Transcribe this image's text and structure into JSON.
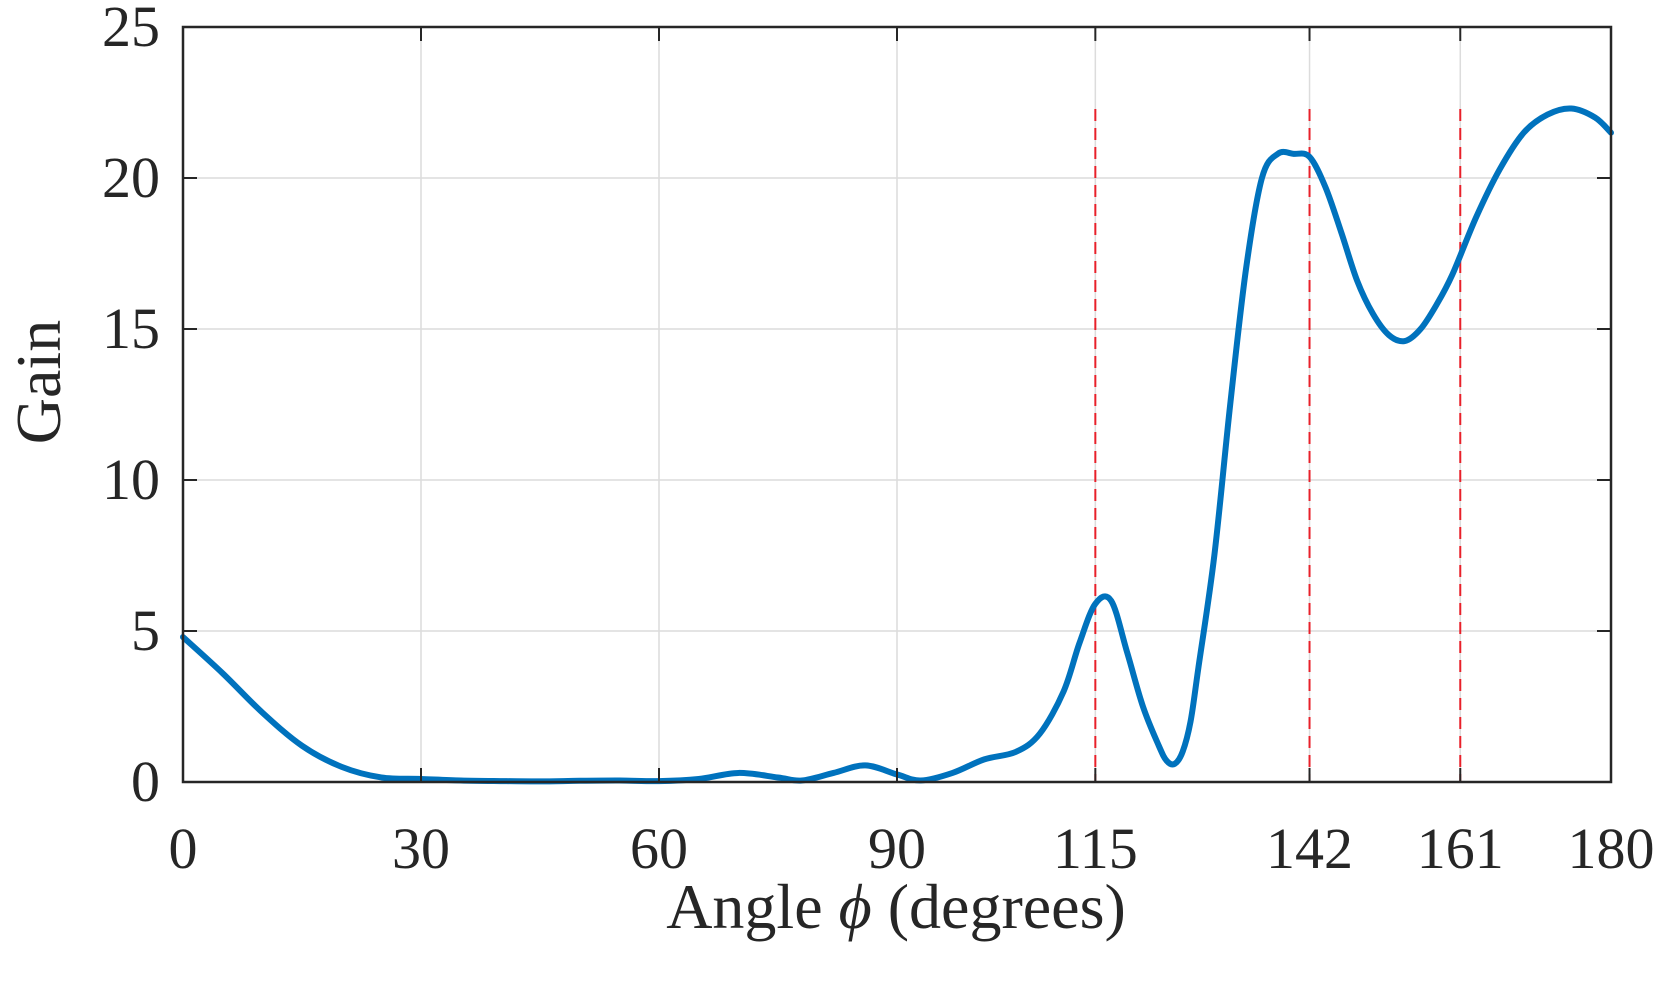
{
  "chart_data": {
    "type": "line",
    "title": "",
    "xlabel": "Angle",
    "xlabel_symbol": "ϕ",
    "xlabel_unit": "(degrees)",
    "ylabel": "Gain",
    "xlim": [
      0,
      180
    ],
    "ylim": [
      0,
      25
    ],
    "xticks": [
      0,
      30,
      60,
      90,
      115,
      142,
      161,
      180
    ],
    "yticks": [
      0,
      5,
      10,
      15,
      20,
      25
    ],
    "grid": true,
    "reference_lines": {
      "x": [
        115,
        142,
        161
      ],
      "style": "dashed",
      "color": "#e8202a"
    },
    "series": [
      {
        "color": "#0072bd",
        "x": [
          0,
          5,
          10,
          15,
          20,
          25,
          30,
          35,
          40,
          45,
          50,
          55,
          60,
          65,
          70,
          75,
          78,
          82,
          86,
          90,
          93,
          97,
          101,
          105,
          108,
          111,
          113,
          115,
          117,
          119,
          121,
          123,
          124,
          125,
          126,
          127,
          128,
          130,
          132,
          134,
          136,
          138,
          140,
          142,
          144,
          146,
          148,
          150,
          152,
          154,
          156,
          158,
          160,
          163,
          166,
          169,
          172,
          175,
          178,
          180
        ],
        "y": [
          4.8,
          3.6,
          2.3,
          1.2,
          0.5,
          0.15,
          0.1,
          0.05,
          0.03,
          0.02,
          0.04,
          0.05,
          0.03,
          0.1,
          0.3,
          0.15,
          0.05,
          0.3,
          0.55,
          0.25,
          0.05,
          0.3,
          0.75,
          1.0,
          1.6,
          3.0,
          4.6,
          5.9,
          6.0,
          4.3,
          2.5,
          1.2,
          0.7,
          0.6,
          1.0,
          2.0,
          3.8,
          7.5,
          12.5,
          17.0,
          20.0,
          20.8,
          20.8,
          20.7,
          19.7,
          18.2,
          16.6,
          15.5,
          14.8,
          14.6,
          15.0,
          15.8,
          16.8,
          18.7,
          20.3,
          21.5,
          22.1,
          22.3,
          22.0,
          21.5
        ]
      }
    ]
  }
}
